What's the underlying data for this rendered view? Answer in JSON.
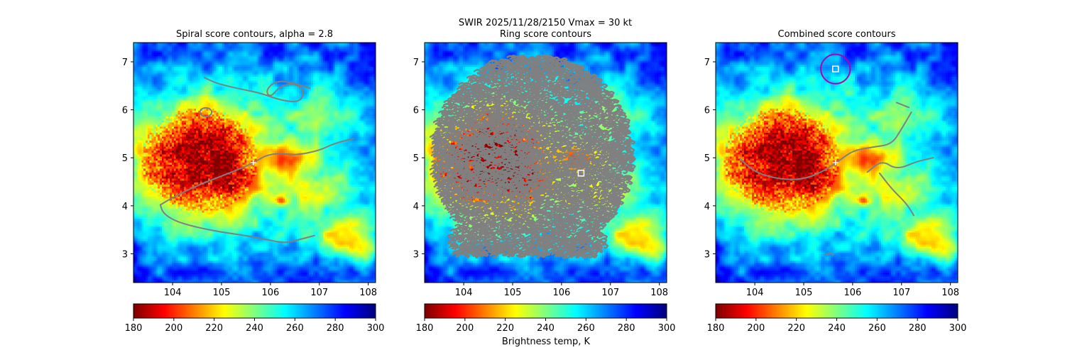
{
  "figure": {
    "suptitle_line1": "SWIR  2025/11/28/2150    Vmax = 30 kt",
    "colorbar_label": "Brightness temp, K"
  },
  "colors": {
    "contour": "#808080",
    "marker": "#ffffff",
    "circle": "#b000b0"
  },
  "chart_data": [
    {
      "type": "heatmap",
      "title": "Spiral score contours, alpha =  2.8",
      "xlim": [
        103.2,
        108.15
      ],
      "ylim": [
        2.4,
        7.4
      ],
      "xticks": [
        "104",
        "105",
        "106",
        "107",
        "108"
      ],
      "yticks": [
        "3",
        "4",
        "5",
        "6",
        "7"
      ],
      "xtick_values": [
        104,
        105,
        106,
        107,
        108
      ],
      "ytick_values": [
        3,
        4,
        5,
        6,
        7
      ],
      "colorbar": {
        "cmap": "jet_r",
        "vmin": 180,
        "vmax": 300,
        "ticks": [
          "180",
          "200",
          "220",
          "240",
          "260",
          "280",
          "300"
        ],
        "tick_values": [
          180,
          200,
          220,
          240,
          260,
          280,
          300
        ]
      },
      "markers": [
        {
          "kind": "plus",
          "x": 105.65,
          "y": 4.9
        }
      ],
      "contours": [
        [
          [
            103.75,
            4.02
          ],
          [
            104.05,
            4.2
          ],
          [
            104.5,
            4.42
          ],
          [
            105.0,
            4.62
          ],
          [
            105.4,
            4.78
          ],
          [
            105.7,
            4.92
          ],
          [
            105.9,
            5.05
          ],
          [
            106.2,
            5.1
          ],
          [
            106.5,
            5.05
          ],
          [
            107.0,
            5.15
          ],
          [
            107.3,
            5.3
          ],
          [
            107.7,
            5.4
          ]
        ],
        [
          [
            103.75,
            4.02
          ],
          [
            103.8,
            3.85
          ],
          [
            104.05,
            3.68
          ],
          [
            104.5,
            3.55
          ],
          [
            105.0,
            3.45
          ],
          [
            105.5,
            3.38
          ],
          [
            106.0,
            3.28
          ],
          [
            106.3,
            3.22
          ],
          [
            106.6,
            3.3
          ],
          [
            106.9,
            3.38
          ]
        ],
        [
          [
            104.65,
            6.67
          ],
          [
            104.9,
            6.55
          ],
          [
            105.3,
            6.45
          ],
          [
            105.8,
            6.35
          ],
          [
            106.2,
            6.2
          ],
          [
            106.6,
            6.15
          ],
          [
            106.7,
            6.4
          ],
          [
            106.5,
            6.55
          ],
          [
            106.2,
            6.5
          ],
          [
            106.0,
            6.25
          ],
          [
            105.9,
            6.4
          ],
          [
            106.1,
            6.6
          ],
          [
            106.4,
            6.58
          ],
          [
            106.8,
            6.45
          ]
        ]
      ],
      "small_loops": [
        {
          "x": 104.68,
          "y": 5.95,
          "rx": 0.12,
          "ry": 0.09
        }
      ]
    },
    {
      "type": "heatmap",
      "title": "Ring score contours",
      "xlim": [
        103.2,
        108.15
      ],
      "ylim": [
        2.4,
        7.4
      ],
      "xticks": [
        "104",
        "105",
        "106",
        "107",
        "108"
      ],
      "yticks": [
        "3",
        "4",
        "5",
        "6",
        "7"
      ],
      "xtick_values": [
        104,
        105,
        106,
        107,
        108
      ],
      "ytick_values": [
        3,
        4,
        5,
        6,
        7
      ],
      "colorbar": {
        "cmap": "jet_r",
        "vmin": 180,
        "vmax": 300,
        "ticks": [
          "180",
          "200",
          "220",
          "240",
          "260",
          "280",
          "300"
        ],
        "tick_values": [
          180,
          200,
          220,
          240,
          260,
          280,
          300
        ]
      },
      "markers": [
        {
          "kind": "square",
          "x": 106.4,
          "y": 4.68
        }
      ],
      "ring_region": {
        "cx": 105.4,
        "cy": 5.05,
        "rx": 2.05,
        "ry": 2.1
      },
      "contours": []
    },
    {
      "type": "heatmap",
      "title": "Combined score contours",
      "xlim": [
        103.2,
        108.15
      ],
      "ylim": [
        2.4,
        7.4
      ],
      "xticks": [
        "104",
        "105",
        "106",
        "107",
        "108"
      ],
      "yticks": [
        "3",
        "4",
        "5",
        "6",
        "7"
      ],
      "xtick_values": [
        104,
        105,
        106,
        107,
        108
      ],
      "ytick_values": [
        3,
        4,
        5,
        6,
        7
      ],
      "colorbar": {
        "cmap": "jet_r",
        "vmin": 180,
        "vmax": 300,
        "ticks": [
          "180",
          "200",
          "220",
          "240",
          "260",
          "280",
          "300"
        ],
        "tick_values": [
          180,
          200,
          220,
          240,
          260,
          280,
          300
        ]
      },
      "markers": [
        {
          "kind": "plus",
          "x": 105.65,
          "y": 4.9
        },
        {
          "kind": "square",
          "x": 105.65,
          "y": 6.85
        }
      ],
      "circles": [
        {
          "x": 105.65,
          "y": 6.85,
          "r": 0.3
        }
      ],
      "contours": [
        [
          [
            103.7,
            4.98
          ],
          [
            104.0,
            4.7
          ],
          [
            104.5,
            4.55
          ],
          [
            105.0,
            4.55
          ],
          [
            105.4,
            4.72
          ],
          [
            105.7,
            4.92
          ],
          [
            106.0,
            5.15
          ],
          [
            106.4,
            5.22
          ],
          [
            106.8,
            5.28
          ],
          [
            107.0,
            5.6
          ],
          [
            107.2,
            5.95
          ]
        ],
        [
          [
            106.9,
            6.15
          ],
          [
            107.15,
            6.05
          ]
        ],
        [
          [
            106.3,
            4.7
          ],
          [
            106.6,
            4.95
          ],
          [
            106.9,
            4.75
          ],
          [
            107.3,
            4.92
          ],
          [
            107.65,
            5.0
          ]
        ],
        [
          [
            106.55,
            4.68
          ],
          [
            106.8,
            4.35
          ],
          [
            107.1,
            4.05
          ],
          [
            107.25,
            3.8
          ]
        ],
        [
          [
            105.45,
            2.98
          ],
          [
            105.55,
            3.02
          ],
          [
            105.6,
            2.98
          ]
        ]
      ]
    }
  ]
}
